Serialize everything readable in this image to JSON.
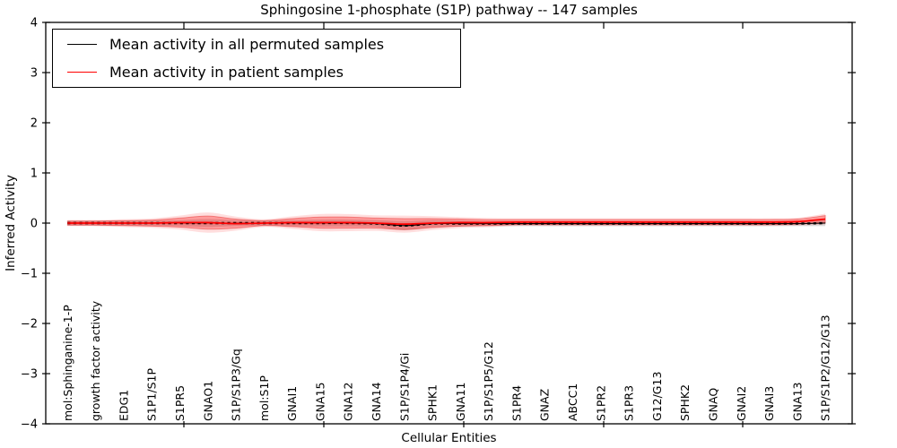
{
  "figure": {
    "title": "Sphingosine 1-phosphate (S1P) pathway -- 147 samples",
    "xlabel": "Cellular Entities",
    "ylabel": "Inferred Activity"
  },
  "legend": {
    "entries": [
      {
        "label": "Mean activity in all permuted samples",
        "color": "#000000"
      },
      {
        "label": "Mean activity in patient samples",
        "color": "#ff0000"
      }
    ]
  },
  "chart_data": {
    "type": "line",
    "title": "Sphingosine 1-phosphate (S1P) pathway -- 147 samples",
    "xlabel": "Cellular Entities",
    "ylabel": "Inferred Activity",
    "ylim": [
      -4,
      4
    ],
    "yticks": [
      -4,
      -3,
      -2,
      -1,
      0,
      1,
      2,
      3,
      4
    ],
    "grid": false,
    "legend_position": "upper left",
    "categories": [
      "mol:Sphinganine-1-P",
      "growth factor activity",
      "EDG1",
      "S1P1/S1P",
      "S1PR5",
      "GNAO1",
      "S1P/S1P3/Gq",
      "mol:S1P",
      "GNAI1",
      "GNA15",
      "GNA12",
      "GNA14",
      "S1P/S1P4/Gi",
      "SPHK1",
      "GNA11",
      "S1P/S1P5/G12",
      "S1PR4",
      "GNAZ",
      "ABCC1",
      "S1PR2",
      "S1PR3",
      "G12/G13",
      "SPHK2",
      "GNAQ",
      "GNAI2",
      "GNAI3",
      "GNA13",
      "S1P/S1P2/G12/G13"
    ],
    "series": [
      {
        "name": "Mean activity in all permuted samples",
        "color": "#000000",
        "line_style": "solid-with-point-markers",
        "band_color": "#000000",
        "band_alpha": 0.14,
        "values": [
          0,
          0,
          0,
          0,
          0,
          0,
          0,
          0,
          0,
          0,
          0,
          -0.01,
          -0.05,
          -0.01,
          -0.01,
          -0.01,
          -0.01,
          -0.01,
          -0.01,
          -0.01,
          -0.01,
          -0.01,
          -0.01,
          -0.01,
          -0.01,
          -0.01,
          -0.01,
          0
        ],
        "band_halfwidth": [
          0.05,
          0.05,
          0.05,
          0.05,
          0.06,
          0.08,
          0.06,
          0.05,
          0.06,
          0.07,
          0.07,
          0.07,
          0.09,
          0.07,
          0.06,
          0.05,
          0.05,
          0.05,
          0.05,
          0.05,
          0.05,
          0.05,
          0.05,
          0.05,
          0.05,
          0.05,
          0.05,
          0.06
        ]
      },
      {
        "name": "Mean activity in patient samples",
        "color": "#ff0000",
        "line_style": "solid",
        "band_color": "#ff0000",
        "band_alpha": 0.3,
        "values": [
          0,
          0,
          0,
          0,
          0.01,
          0.01,
          -0.01,
          0,
          0.01,
          0.01,
          0.01,
          0,
          -0.02,
          0,
          0.01,
          0.01,
          0.02,
          0.02,
          0.02,
          0.02,
          0.02,
          0.02,
          0.02,
          0.02,
          0.02,
          0.02,
          0.03,
          0.08
        ],
        "band_halfwidth": [
          0.04,
          0.04,
          0.05,
          0.06,
          0.09,
          0.13,
          0.09,
          0.05,
          0.08,
          0.11,
          0.11,
          0.1,
          0.11,
          0.09,
          0.07,
          0.06,
          0.05,
          0.05,
          0.05,
          0.05,
          0.05,
          0.05,
          0.05,
          0.05,
          0.05,
          0.05,
          0.05,
          0.07
        ]
      }
    ]
  }
}
